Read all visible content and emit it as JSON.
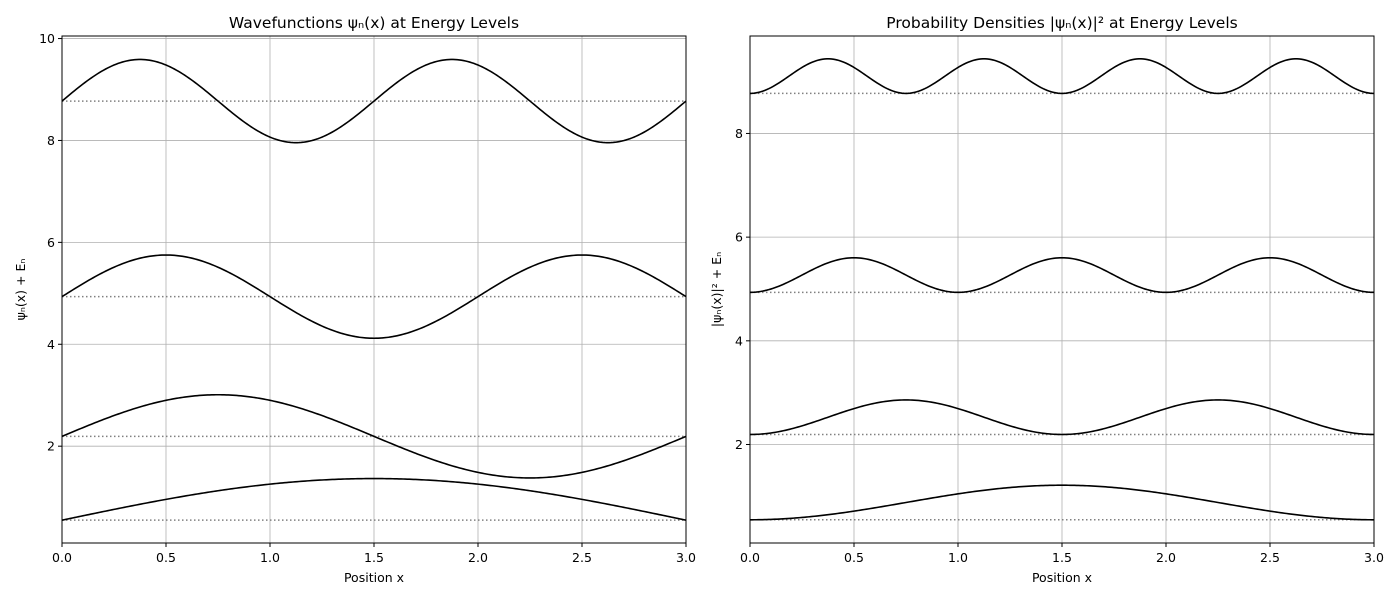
{
  "chart_data": [
    {
      "type": "line",
      "title": "Wavefunctions ψₙ(x) at Energy Levels",
      "xlabel": "Position x",
      "ylabel": "ψₙ(x) + Eₙ",
      "xlim": [
        0,
        3
      ],
      "ylim": [
        0.1,
        10.05
      ],
      "xticks": [
        0.0,
        0.5,
        1.0,
        1.5,
        2.0,
        2.5,
        3.0
      ],
      "xtick_labels": [
        "0.0",
        "0.5",
        "1.0",
        "1.5",
        "2.0",
        "2.5",
        "3.0"
      ],
      "yticks": [
        2,
        4,
        6,
        8,
        10
      ],
      "ytick_labels": [
        "2",
        "4",
        "6",
        "8",
        "10"
      ],
      "grid": true,
      "series_color": "#000000",
      "level_color": "#808080",
      "series": [
        {
          "n": 1,
          "energy": 0.548,
          "amplitude": 0.8165,
          "function": "sin",
          "x": [
            0,
            0.375,
            0.75,
            1.125,
            1.5,
            1.875,
            2.25,
            2.625,
            3.0
          ],
          "y": [
            0.548,
            0.86,
            1.125,
            1.302,
            1.365,
            1.302,
            1.125,
            0.86,
            0.548
          ]
        },
        {
          "n": 2,
          "energy": 2.193,
          "amplitude": 0.8165,
          "function": "sin",
          "x": [
            0,
            0.375,
            0.75,
            1.125,
            1.5,
            1.875,
            2.25,
            2.625,
            3.0
          ],
          "y": [
            2.193,
            2.77,
            3.01,
            2.77,
            2.193,
            1.616,
            1.376,
            1.616,
            2.193
          ]
        },
        {
          "n": 3,
          "energy": 4.935,
          "amplitude": 0.8165,
          "function": "sin",
          "x": [
            0,
            0.25,
            0.5,
            0.75,
            1.0,
            1.25,
            1.5,
            1.75,
            2.0,
            2.25,
            2.5,
            2.75,
            3.0
          ],
          "y": [
            4.935,
            5.512,
            5.752,
            5.512,
            4.935,
            4.358,
            4.118,
            4.358,
            4.935,
            5.512,
            5.752,
            5.512,
            4.935
          ]
        },
        {
          "n": 4,
          "energy": 8.773,
          "amplitude": 0.8165,
          "function": "sin",
          "x": [
            0,
            0.375,
            0.75,
            1.125,
            1.5,
            1.875,
            2.25,
            2.625,
            3.0
          ],
          "y": [
            8.773,
            9.59,
            8.773,
            7.956,
            8.773,
            9.59,
            8.773,
            7.956,
            8.773
          ]
        }
      ]
    },
    {
      "type": "line",
      "title": "Probability Densities |ψₙ(x)|² at Energy Levels",
      "xlabel": "Position x",
      "ylabel": "|ψₙ(x)|² + Eₙ",
      "xlim": [
        0,
        3
      ],
      "ylim": [
        0.1,
        9.88
      ],
      "xticks": [
        0.0,
        0.5,
        1.0,
        1.5,
        2.0,
        2.5,
        3.0
      ],
      "xtick_labels": [
        "0.0",
        "0.5",
        "1.0",
        "1.5",
        "2.0",
        "2.5",
        "3.0"
      ],
      "yticks": [
        2,
        4,
        6,
        8
      ],
      "ytick_labels": [
        "2",
        "4",
        "6",
        "8"
      ],
      "grid": true,
      "series_color": "#000000",
      "level_color": "#808080",
      "series": [
        {
          "n": 1,
          "energy": 0.548,
          "amplitude": 0.6667,
          "function": "sin2",
          "x": [
            0,
            0.375,
            0.75,
            1.125,
            1.5,
            1.875,
            2.25,
            2.625,
            3.0
          ],
          "y": [
            0.548,
            0.646,
            0.881,
            1.117,
            1.215,
            1.117,
            0.881,
            0.646,
            0.548
          ]
        },
        {
          "n": 2,
          "energy": 2.193,
          "amplitude": 0.6667,
          "function": "sin2",
          "x": [
            0,
            0.375,
            0.75,
            1.125,
            1.5,
            1.875,
            2.25,
            2.625,
            3.0
          ],
          "y": [
            2.193,
            2.526,
            2.86,
            2.526,
            2.193,
            2.526,
            2.86,
            2.526,
            2.193
          ]
        },
        {
          "n": 3,
          "energy": 4.935,
          "amplitude": 0.6667,
          "function": "sin2",
          "x": [
            0,
            0.25,
            0.5,
            0.75,
            1.0,
            1.25,
            1.5,
            1.75,
            2.0,
            2.25,
            2.5,
            2.75,
            3.0
          ],
          "y": [
            4.935,
            5.268,
            5.602,
            5.268,
            4.935,
            5.268,
            5.602,
            5.268,
            4.935,
            5.268,
            5.602,
            5.268,
            4.935
          ]
        },
        {
          "n": 4,
          "energy": 8.773,
          "amplitude": 0.6667,
          "function": "sin2",
          "x": [
            0,
            0.375,
            0.75,
            1.125,
            1.5,
            1.875,
            2.25,
            2.625,
            3.0
          ],
          "y": [
            8.773,
            9.44,
            8.773,
            9.44,
            8.773,
            9.44,
            8.773,
            9.44,
            8.773
          ]
        }
      ]
    }
  ]
}
